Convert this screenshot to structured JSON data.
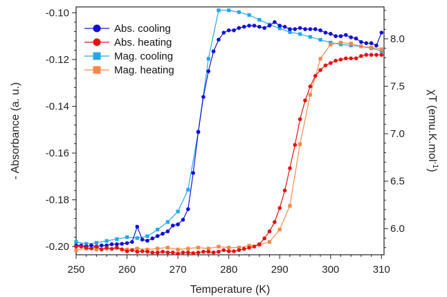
{
  "chart_data": {
    "type": "line",
    "xlabel": "Temperature (K)",
    "ylabel_left": "- Absorbance (a. u.)",
    "ylabel_right": {
      "prefix": "χT (emu.K.mol",
      "sup": "-1",
      "suffix": ")"
    },
    "xlim": [
      250,
      310.5
    ],
    "ylim_left": [
      -0.2035,
      -0.0975
    ],
    "ylim_right": [
      5.7244,
      8.3356
    ],
    "x_ticks": [
      250,
      260,
      270,
      280,
      290,
      300,
      310
    ],
    "y_left_ticks": [
      -0.2,
      -0.18,
      -0.16,
      -0.14,
      -0.12,
      -0.1
    ],
    "y_left_tick_labels": [
      "-0.20",
      "-0.18",
      "-0.16",
      "-0.14",
      "-0.12",
      "-0.10"
    ],
    "y_right_ticks": [
      6.0,
      6.5,
      7.0,
      7.5,
      8.0
    ],
    "y_right_tick_labels": [
      "6.0",
      "6.5",
      "7.0",
      "7.5",
      "8.0"
    ],
    "legend_position": "top-left",
    "colors": {
      "abs_cooling": "#1010d8",
      "abs_heating": "#e81010",
      "mag_cooling": "#22a8e8",
      "mag_heating": "#f4884c"
    },
    "series": [
      {
        "name": "Abs. cooling",
        "axis": "left",
        "marker": "circle",
        "color_key": "abs_cooling",
        "x": [
          250,
          251,
          252,
          253,
          254,
          255,
          256,
          257,
          258,
          259,
          260,
          261,
          262,
          263,
          264,
          265,
          266,
          267,
          268,
          269,
          270,
          271,
          272,
          273,
          274,
          275,
          276,
          277,
          278,
          279,
          280,
          281,
          282,
          283,
          284,
          285,
          286,
          287,
          288,
          289,
          290,
          291,
          292,
          293,
          294,
          295,
          296,
          297,
          298,
          299,
          300,
          301,
          302,
          303,
          304,
          305,
          306,
          307,
          308,
          309,
          310
        ],
        "y": [
          -0.1995,
          -0.1995,
          -0.2,
          -0.1995,
          -0.2,
          -0.1995,
          -0.1995,
          -0.199,
          -0.199,
          -0.1988,
          -0.1985,
          -0.198,
          -0.1915,
          -0.197,
          -0.1975,
          -0.1965,
          -0.1955,
          -0.1945,
          -0.1935,
          -0.191,
          -0.1905,
          -0.1885,
          -0.184,
          -0.1685,
          -0.151,
          -0.136,
          -0.125,
          -0.1165,
          -0.1115,
          -0.1085,
          -0.1075,
          -0.1075,
          -0.1065,
          -0.106,
          -0.1055,
          -0.1055,
          -0.106,
          -0.1065,
          -0.1055,
          -0.104,
          -0.1055,
          -0.106,
          -0.107,
          -0.107,
          -0.1065,
          -0.107,
          -0.107,
          -0.107,
          -0.1075,
          -0.1085,
          -0.109,
          -0.11,
          -0.11,
          -0.1095,
          -0.1105,
          -0.111,
          -0.1125,
          -0.113,
          -0.113,
          -0.114,
          -0.1085
        ]
      },
      {
        "name": "Abs. heating",
        "axis": "left",
        "marker": "circle",
        "color_key": "abs_heating",
        "x": [
          250,
          251,
          252,
          253,
          254,
          255,
          256,
          257,
          258,
          259,
          260,
          261,
          262,
          263,
          264,
          265,
          266,
          267,
          268,
          269,
          270,
          271,
          272,
          273,
          274,
          275,
          276,
          277,
          278,
          279,
          280,
          281,
          282,
          283,
          284,
          285,
          286,
          287,
          288,
          289,
          290,
          291,
          292,
          293,
          294,
          295,
          296,
          297,
          298,
          299,
          300,
          301,
          302,
          303,
          304,
          305,
          306,
          307,
          308,
          309,
          310
        ],
        "y": [
          -0.2,
          -0.2,
          -0.2005,
          -0.2008,
          -0.2,
          -0.2012,
          -0.2005,
          -0.201,
          -0.2005,
          -0.2012,
          -0.202,
          -0.2015,
          -0.2022,
          -0.202,
          -0.2022,
          -0.2025,
          -0.2025,
          -0.2022,
          -0.2025,
          -0.2025,
          -0.203,
          -0.2025,
          -0.2025,
          -0.2028,
          -0.2025,
          -0.2022,
          -0.2022,
          -0.2025,
          -0.2022,
          -0.2015,
          -0.202,
          -0.202,
          -0.2015,
          -0.201,
          -0.2005,
          -0.2,
          -0.199,
          -0.1965,
          -0.1935,
          -0.1895,
          -0.1835,
          -0.176,
          -0.1665,
          -0.1565,
          -0.1455,
          -0.1375,
          -0.1315,
          -0.127,
          -0.1245,
          -0.1225,
          -0.1215,
          -0.1205,
          -0.12,
          -0.1195,
          -0.1195,
          -0.1195,
          -0.1185,
          -0.118,
          -0.118,
          -0.118,
          -0.118
        ]
      },
      {
        "name": "Mag. cooling",
        "axis": "right",
        "marker": "square",
        "color_key": "mag_cooling",
        "x": [
          250,
          252,
          254,
          256,
          258,
          260,
          262,
          264,
          266,
          268,
          270,
          272,
          274,
          276,
          278,
          280,
          282,
          284,
          286,
          288,
          290,
          292,
          294,
          296,
          298,
          300,
          302,
          304,
          306,
          308,
          310
        ],
        "y": [
          5.86,
          5.84,
          5.85,
          5.87,
          5.89,
          5.91,
          5.9,
          5.92,
          5.99,
          6.07,
          6.18,
          6.41,
          7.02,
          7.79,
          8.3,
          8.3,
          8.28,
          8.25,
          8.2,
          8.15,
          8.11,
          8.07,
          8.05,
          8.02,
          7.99,
          7.96,
          7.94,
          7.93,
          7.92,
          7.9,
          7.87
        ]
      },
      {
        "name": "Mag. heating",
        "axis": "right",
        "marker": "square",
        "color_key": "mag_heating",
        "x": [
          250,
          252,
          254,
          256,
          258,
          260,
          262,
          264,
          266,
          268,
          270,
          272,
          274,
          276,
          278,
          280,
          282,
          284,
          286,
          288,
          290,
          292,
          294,
          296,
          298,
          300,
          302,
          304,
          306,
          308,
          310
        ],
        "y": [
          5.77,
          5.79,
          5.78,
          5.79,
          5.8,
          5.78,
          5.79,
          5.78,
          5.79,
          5.8,
          5.78,
          5.79,
          5.8,
          5.79,
          5.81,
          5.8,
          5.8,
          5.82,
          5.83,
          5.86,
          5.99,
          6.24,
          6.89,
          7.41,
          7.79,
          7.94,
          7.96,
          7.95,
          7.92,
          7.91,
          7.89
        ]
      }
    ]
  }
}
